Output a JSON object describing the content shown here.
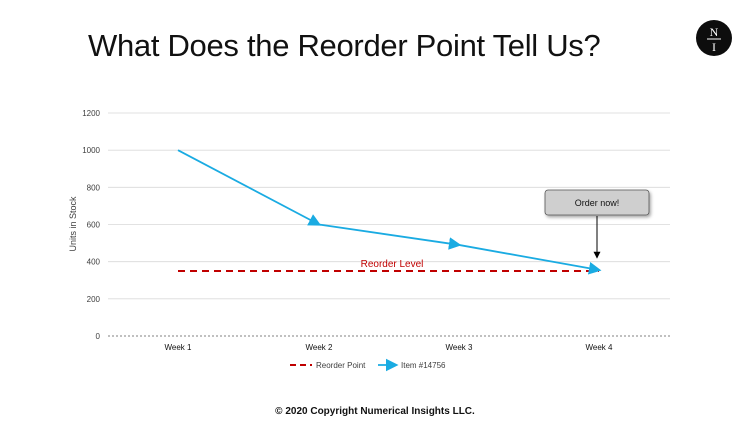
{
  "slide": {
    "title": "What Does the Reorder Point Tell Us?",
    "logo_letters": [
      "N",
      "I"
    ],
    "footer": "© 2020 Copyright Numerical Insights LLC."
  },
  "colors": {
    "item_series": "#1aabe2",
    "reorder_series": "#c00000",
    "callout_fill": "#cfcfcf",
    "gridline": "#d9d9d9",
    "text": "#404040"
  },
  "chart_data": {
    "type": "line",
    "categories": [
      "Week 1",
      "Week 2",
      "Week 3",
      "Week 4"
    ],
    "ylabel": "Units in Stock",
    "xlabel": "",
    "ylim": [
      0,
      1200
    ],
    "yticks": [
      0,
      200,
      400,
      600,
      800,
      1000,
      1200
    ],
    "grid": true,
    "legend_position": "bottom",
    "series": [
      {
        "name": "Reorder Point",
        "values": [
          350,
          350,
          350,
          350
        ],
        "style": "dashed"
      },
      {
        "name": "Item #14756",
        "values": [
          1000,
          600,
          490,
          355
        ],
        "style": "solid-arrows"
      }
    ],
    "annotations": {
      "reorder_label": "Reorder Level",
      "callout": "Order now!"
    }
  }
}
